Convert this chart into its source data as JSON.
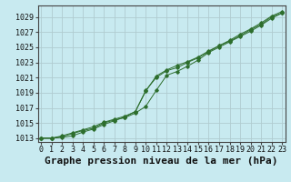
{
  "title": "Graphe pression niveau de la mer (hPa)",
  "background_color": "#c8eaf0",
  "grid_color": "#b0ccd0",
  "line_color": "#2d6e2d",
  "x_hours": [
    0,
    1,
    2,
    3,
    4,
    5,
    6,
    7,
    8,
    9,
    10,
    11,
    12,
    13,
    14,
    15,
    16,
    17,
    18,
    19,
    20,
    21,
    22,
    23
  ],
  "line1": [
    1013.0,
    1013.0,
    1013.1,
    1013.3,
    1013.8,
    1014.2,
    1014.8,
    1015.3,
    1015.8,
    1016.5,
    1019.2,
    1021.2,
    1022.0,
    1022.6,
    1023.1,
    1023.7,
    1024.5,
    1025.2,
    1025.8,
    1026.5,
    1027.3,
    1028.0,
    1029.0,
    1029.5
  ],
  "line2": [
    1013.0,
    1013.0,
    1013.2,
    1013.6,
    1014.0,
    1014.3,
    1015.0,
    1015.4,
    1015.7,
    1016.3,
    1017.2,
    1019.3,
    1021.3,
    1021.8,
    1022.5,
    1023.3,
    1024.3,
    1025.0,
    1025.7,
    1026.4,
    1027.1,
    1027.9,
    1028.8,
    1029.5
  ],
  "line3": [
    1013.0,
    1013.0,
    1013.3,
    1013.7,
    1014.1,
    1014.5,
    1015.1,
    1015.5,
    1015.9,
    1016.5,
    1019.3,
    1021.0,
    1021.9,
    1022.3,
    1023.0,
    1023.6,
    1024.4,
    1025.2,
    1025.9,
    1026.7,
    1027.4,
    1028.2,
    1029.1,
    1029.7
  ],
  "ylim": [
    1012.5,
    1030.5
  ],
  "yticks": [
    1013,
    1015,
    1017,
    1019,
    1021,
    1023,
    1025,
    1027,
    1029
  ],
  "title_fontsize": 8,
  "tick_fontsize": 6,
  "xlabel_fontsize": 8
}
